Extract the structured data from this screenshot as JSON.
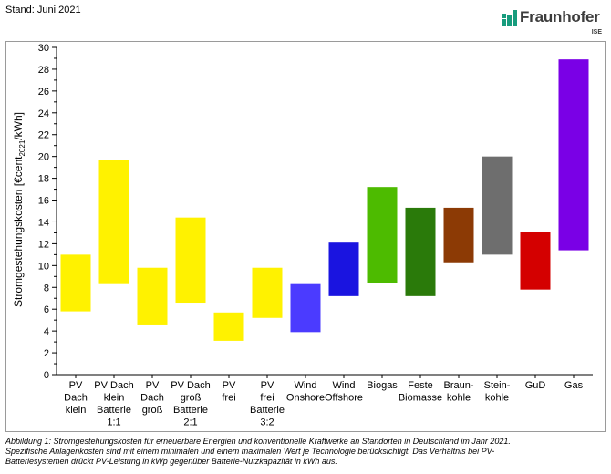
{
  "header": {
    "stand": "Stand: Juni 2021",
    "logo_name": "Fraunhofer",
    "logo_sub": "ISE",
    "logo_color": "#179c7d"
  },
  "chart_data": {
    "type": "bar",
    "subtype": "floating-range",
    "title": "",
    "xlabel": "",
    "ylabel": "Stromgestehungskosten [€cent",
    "ylabel_sub": "2021",
    "ylabel_end": "/kWh]",
    "ylim": [
      0,
      30
    ],
    "yticks": [
      0,
      2,
      4,
      6,
      8,
      10,
      12,
      14,
      16,
      18,
      20,
      22,
      24,
      26,
      28,
      30
    ],
    "grid": false,
    "categories": [
      {
        "lines": [
          "PV",
          "Dach",
          "klein"
        ],
        "min": 5.8,
        "max": 11.0,
        "color": "#fff200"
      },
      {
        "lines": [
          "PV Dach",
          "klein",
          "Batterie",
          "1:1"
        ],
        "min": 8.3,
        "max": 19.7,
        "color": "#fff200"
      },
      {
        "lines": [
          "PV",
          "Dach",
          "groß"
        ],
        "min": 4.6,
        "max": 9.8,
        "color": "#fff200"
      },
      {
        "lines": [
          "PV Dach",
          "groß",
          "Batterie",
          "2:1"
        ],
        "min": 6.6,
        "max": 14.4,
        "color": "#fff200"
      },
      {
        "lines": [
          "PV",
          "frei"
        ],
        "min": 3.1,
        "max": 5.7,
        "color": "#fff200"
      },
      {
        "lines": [
          "PV",
          "frei",
          "Batterie",
          "3:2"
        ],
        "min": 5.2,
        "max": 9.8,
        "color": "#fff200"
      },
      {
        "lines": [
          "Wind",
          "Onshore"
        ],
        "min": 3.9,
        "max": 8.3,
        "color": "#4b3bff"
      },
      {
        "lines": [
          "Wind",
          "Offshore"
        ],
        "min": 7.2,
        "max": 12.1,
        "color": "#1a14e0"
      },
      {
        "lines": [
          "Biogas"
        ],
        "min": 8.4,
        "max": 17.2,
        "color": "#4dbb00"
      },
      {
        "lines": [
          "Feste",
          "Biomasse"
        ],
        "min": 7.2,
        "max": 15.3,
        "color": "#2a7a0a"
      },
      {
        "lines": [
          "Braun-",
          "kohle"
        ],
        "min": 10.3,
        "max": 15.3,
        "color": "#8c3a05"
      },
      {
        "lines": [
          "Stein-",
          "kohle"
        ],
        "min": 11.0,
        "max": 20.0,
        "color": "#6e6e6e"
      },
      {
        "lines": [
          "GuD"
        ],
        "min": 7.8,
        "max": 13.1,
        "color": "#d40000"
      },
      {
        "lines": [
          "Gas"
        ],
        "min": 11.4,
        "max": 28.9,
        "color": "#7a00e6"
      }
    ]
  },
  "caption": {
    "line1": "Abbildung 1: Stromgestehungskosten für erneuerbare Energien und konventionelle Kraftwerke an Standorten in Deutschland im Jahr 2021.",
    "line2": "Spezifische Anlagenkosten sind mit einem minimalen und einem maximalen Wert je Technologie berücksichtigt. Das Verhältnis bei PV-",
    "line3": "Batteriesystemen drückt PV-Leistung in kWp gegenüber Batterie-Nutzkapazität in kWh aus."
  }
}
